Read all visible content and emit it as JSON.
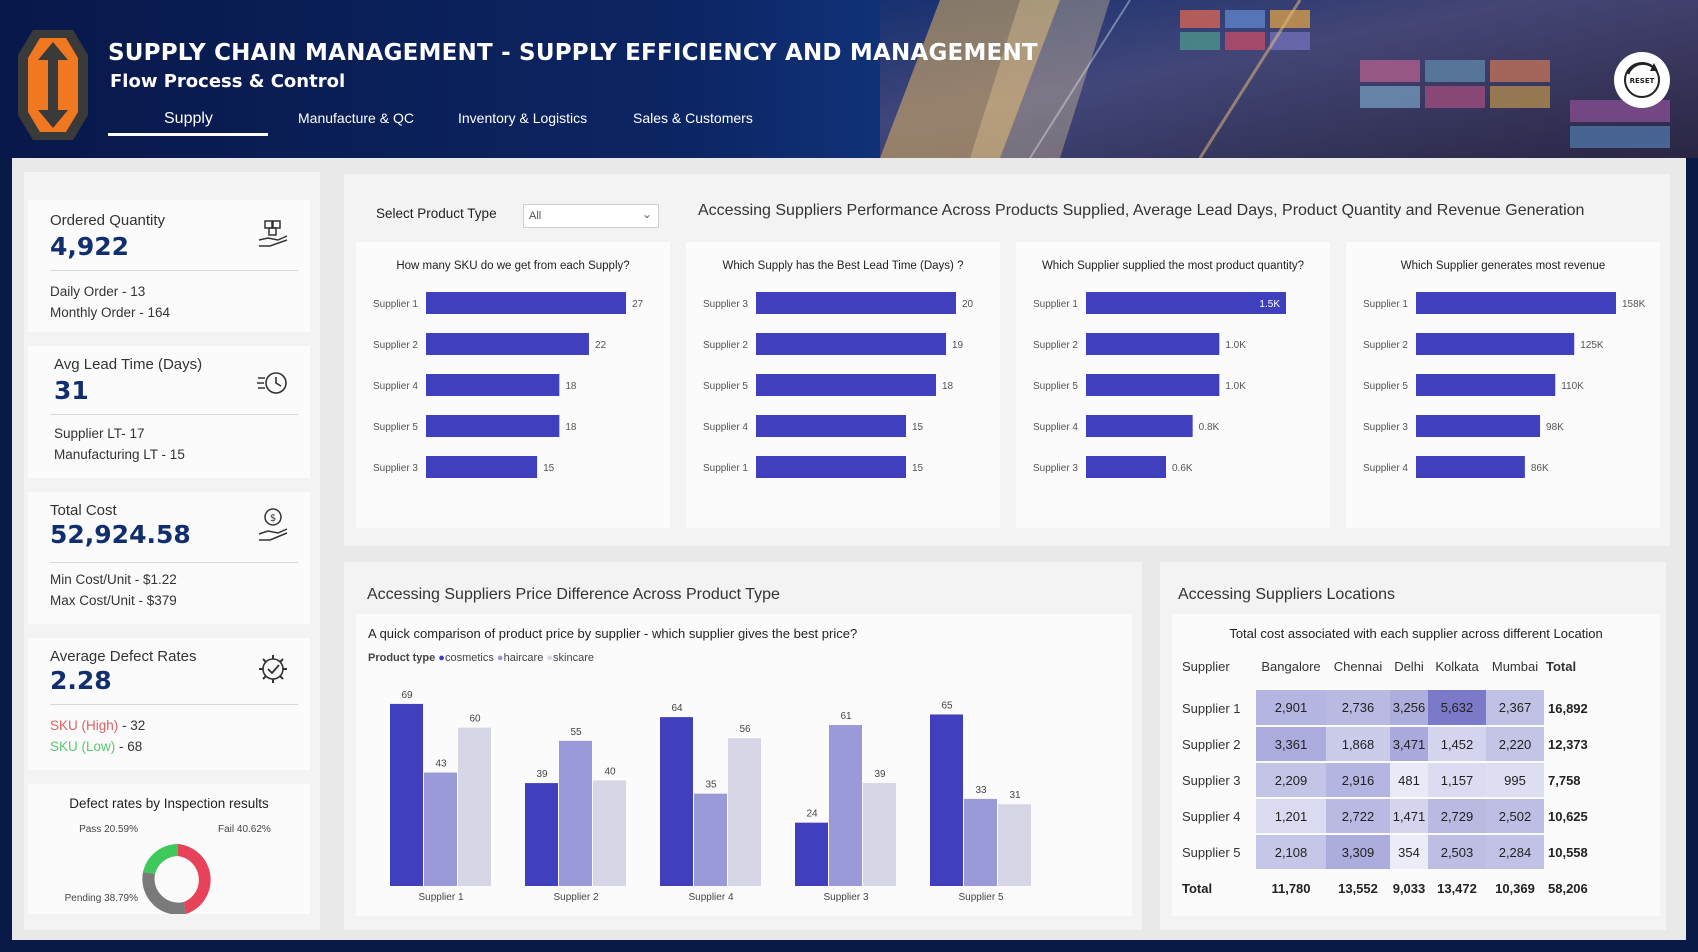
{
  "header": {
    "title": "SUPPLY CHAIN MANAGEMENT - SUPPLY EFFICIENCY AND MANAGEMENT",
    "subtitle": "Flow Process & Control",
    "tabs": [
      "Supply",
      "Manufacture & QC",
      "Inventory & Logistics",
      "Sales & Customers"
    ],
    "active_tab": "Supply",
    "reset_label": "RESET"
  },
  "kpis": {
    "ordered": {
      "label": "Ordered Quantity",
      "value": "4,922",
      "line1": "Daily Order - 13",
      "line2": "Monthly Order - 164",
      "icon": "boxes-hand-icon"
    },
    "lead": {
      "label": "Avg Lead Time (Days)",
      "value": "31",
      "line1": "Supplier LT- 17",
      "line2": "Manufacturing LT - 15",
      "icon": "fast-clock-icon"
    },
    "cost": {
      "label": "Total Cost",
      "value": "52,924.58",
      "line1": "Min Cost/Unit - $1.22",
      "line2": "Max Cost/Unit - $379",
      "icon": "money-hand-icon"
    },
    "defect": {
      "label": "Average Defect Rates",
      "value": "2.28",
      "line1_a": "SKU (High)",
      "line1_b": " - 32",
      "line2_a": "SKU (Low)",
      "line2_b": " - 68",
      "icon": "gear-check-icon"
    }
  },
  "donut": {
    "title": "Defect rates by Inspection results",
    "pass_label": "Pass 20.59%",
    "fail_label": "Fail 40.62%",
    "pending_label": "Pending 38.79%",
    "colors": {
      "pass": "#3ec95a",
      "fail": "#e8425a",
      "pending": "#7a7a7a"
    }
  },
  "filter": {
    "label": "Select Product Type",
    "value": "All"
  },
  "perf_title": "Accessing Suppliers Performance Across Products Supplied, Average Lead Days, Product Quantity and Revenue Generation",
  "price_section_title": "Accessing Suppliers Price Difference Across Product Type",
  "location_section_title": "Accessing Suppliers Locations",
  "chart_data": [
    {
      "type": "bar",
      "orientation": "horizontal",
      "title": "How many SKU do we get from each Supply?",
      "categories": [
        "Supplier 1",
        "Supplier 2",
        "Supplier 4",
        "Supplier 5",
        "Supplier 3"
      ],
      "values": [
        27,
        22,
        18,
        18,
        15
      ],
      "labels": [
        "27",
        "22",
        "18",
        "18",
        "15"
      ],
      "max": 27,
      "color": "#4040bf"
    },
    {
      "type": "bar",
      "orientation": "horizontal",
      "title": "Which Supply has the Best Lead Time (Days) ?",
      "categories": [
        "Supplier 3",
        "Supplier 2",
        "Supplier 5",
        "Supplier 4",
        "Supplier 1"
      ],
      "values": [
        20,
        19,
        18,
        15,
        15
      ],
      "labels": [
        "20",
        "19",
        "18",
        "15",
        "15"
      ],
      "max": 20,
      "color": "#4040bf"
    },
    {
      "type": "bar",
      "orientation": "horizontal",
      "title": "Which Supplier supplied the most product quantity?",
      "categories": [
        "Supplier 1",
        "Supplier 2",
        "Supplier 5",
        "Supplier 4",
        "Supplier 3"
      ],
      "values": [
        1500,
        1000,
        1000,
        800,
        600
      ],
      "labels": [
        "1.5K",
        "1.0K",
        "1.0K",
        "0.8K",
        "0.6K"
      ],
      "max": 1500,
      "color": "#4040bf"
    },
    {
      "type": "bar",
      "orientation": "horizontal",
      "title": "Which Supplier generates most revenue",
      "categories": [
        "Supplier 1",
        "Supplier 2",
        "Supplier 5",
        "Supplier 3",
        "Supplier 4"
      ],
      "values": [
        158000,
        125000,
        110000,
        98000,
        86000
      ],
      "labels": [
        "158K",
        "125K",
        "110K",
        "98K",
        "86K"
      ],
      "max": 158000,
      "color": "#4040bf"
    },
    {
      "type": "bar",
      "orientation": "vertical",
      "title": "A quick comparison of product price by supplier - which supplier gives the best price?",
      "legend_title": "Product type",
      "categories": [
        "Supplier 1",
        "Supplier 2",
        "Supplier 4",
        "Supplier 3",
        "Supplier 5"
      ],
      "series": [
        {
          "name": "cosmetics",
          "values": [
            69,
            39,
            64,
            24,
            65
          ],
          "color": "#4040bf"
        },
        {
          "name": "haircare",
          "values": [
            43,
            55,
            35,
            61,
            33
          ],
          "color": "#9a9ad8"
        },
        {
          "name": "skincare",
          "values": [
            60,
            40,
            56,
            39,
            31
          ],
          "color": "#d6d6e6"
        }
      ],
      "ylim": [
        0,
        72
      ]
    },
    {
      "type": "table",
      "title": "Total cost associated with each supplier across different Location",
      "columns": [
        "Supplier",
        "Bangalore",
        "Chennai",
        "Delhi",
        "Kolkata",
        "Mumbai",
        "Total"
      ],
      "rows": [
        {
          "name": "Supplier 1",
          "values": [
            2901,
            2736,
            3256,
            5632,
            2367
          ],
          "labels": [
            "2,901",
            "2,736",
            "3,256",
            "5,632",
            "2,367"
          ],
          "total": "16,892"
        },
        {
          "name": "Supplier 2",
          "values": [
            3361,
            1868,
            3471,
            1452,
            2220
          ],
          "labels": [
            "3,361",
            "1,868",
            "3,471",
            "1,452",
            "2,220"
          ],
          "total": "12,373"
        },
        {
          "name": "Supplier 3",
          "values": [
            2209,
            2916,
            481,
            1157,
            995
          ],
          "labels": [
            "2,209",
            "2,916",
            "481",
            "1,157",
            "995"
          ],
          "total": "7,758"
        },
        {
          "name": "Supplier 4",
          "values": [
            1201,
            2722,
            1471,
            2729,
            2502
          ],
          "labels": [
            "1,201",
            "2,722",
            "1,471",
            "2,729",
            "2,502"
          ],
          "total": "10,625"
        },
        {
          "name": "Supplier 5",
          "values": [
            2108,
            3309,
            354,
            2503,
            2284
          ],
          "labels": [
            "2,108",
            "3,309",
            "354",
            "2,503",
            "2,284"
          ],
          "total": "10,558"
        }
      ],
      "total_row": {
        "name": "Total",
        "labels": [
          "11,780",
          "13,552",
          "9,033",
          "13,472",
          "10,369"
        ],
        "total": "58,206"
      }
    }
  ]
}
